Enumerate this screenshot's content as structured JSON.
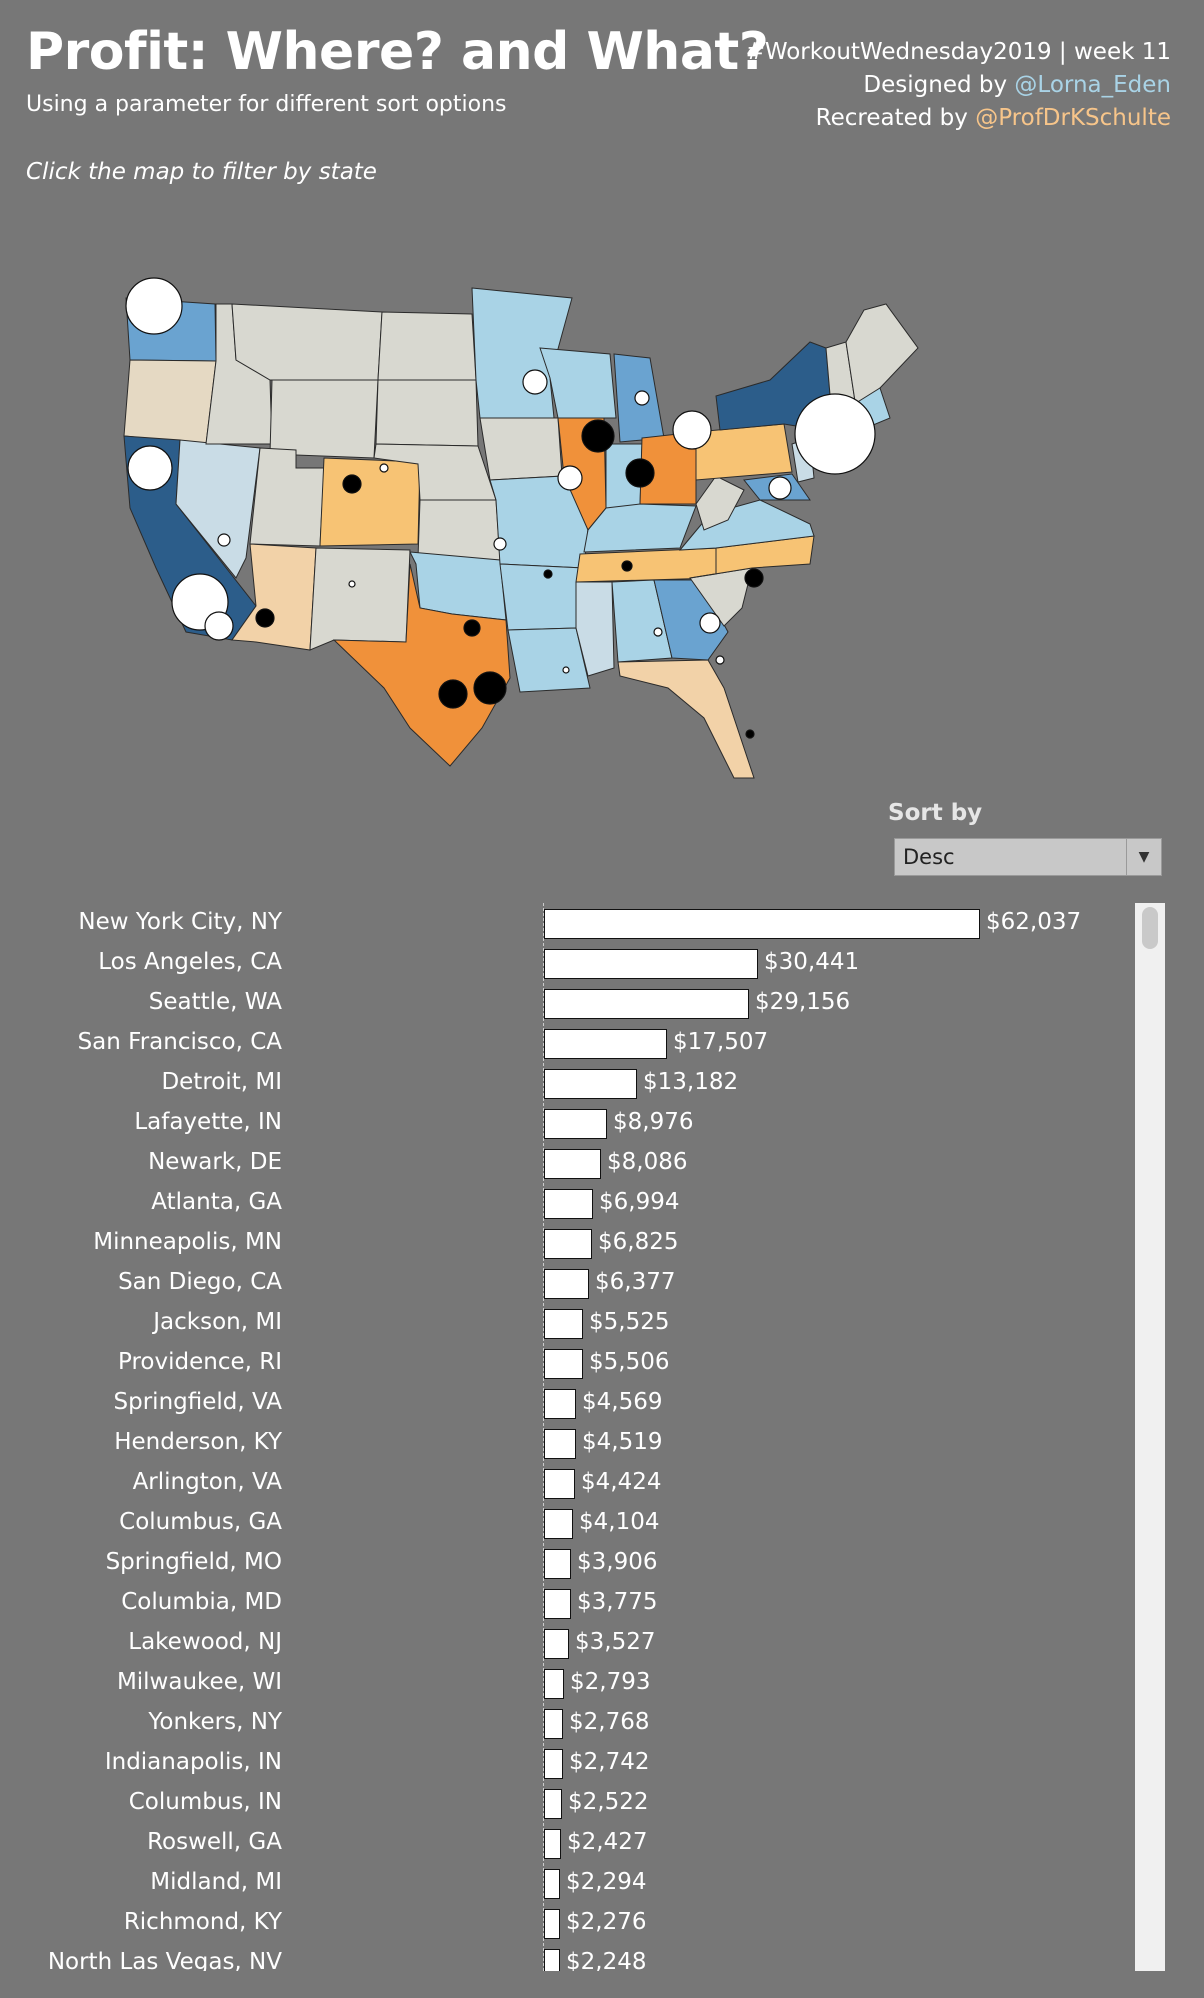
{
  "header": {
    "title": "Profit: Where? and What?",
    "subtitle": "Using a parameter for different sort options",
    "credit_line1": "#WorkoutWednesday2019 | week 11",
    "designed_prefix": "Designed by ",
    "designed_handle": "@Lorna_Eden",
    "recreated_prefix": "Recreated by ",
    "recreated_handle": "@ProfDrKSchulte",
    "instruction": "Click the map to filter by state"
  },
  "colors": {
    "background": "#777777",
    "diverging_high_positive": "#2c5d8a",
    "positive": "#6aa3d0",
    "light_positive": "#a9d3e6",
    "neutral": "#d8d8d0",
    "light_negative": "#f2d2a8",
    "negative": "#f7c374",
    "strong_negative": "#f0913a",
    "bar_fill": "#ffffff"
  },
  "sort": {
    "label": "Sort by",
    "value": "Desc"
  },
  "chart_data": [
    {
      "type": "bar",
      "orientation": "horizontal",
      "categories": [
        "New York City, NY",
        "Los Angeles, CA",
        "Seattle, WA",
        "San Francisco, CA",
        "Detroit, MI",
        "Lafayette, IN",
        "Newark, DE",
        "Atlanta, GA",
        "Minneapolis, MN",
        "San Diego, CA",
        "Jackson, MI",
        "Providence, RI",
        "Springfield, VA",
        "Henderson, KY",
        "Arlington, VA",
        "Columbus, GA",
        "Springfield, MO",
        "Columbia, MD",
        "Lakewood, NJ",
        "Milwaukee, WI",
        "Yonkers, NY",
        "Indianapolis, IN",
        "Columbus, IN",
        "Roswell, GA",
        "Midland, MI",
        "Richmond, KY",
        "North Las Vegas, NV"
      ],
      "values": [
        62037,
        30441,
        29156,
        17507,
        13182,
        8976,
        8086,
        6994,
        6825,
        6377,
        5525,
        5506,
        4569,
        4519,
        4424,
        4104,
        3906,
        3775,
        3527,
        2793,
        2768,
        2742,
        2522,
        2427,
        2294,
        2276,
        2248
      ],
      "labels": [
        "$62,037",
        "$30,441",
        "$29,156",
        "$17,507",
        "$13,182",
        "$8,976",
        "$8,086",
        "$6,994",
        "$6,825",
        "$6,377",
        "$5,525",
        "$5,506",
        "$4,569",
        "$4,519",
        "$4,424",
        "$4,104",
        "$3,906",
        "$3,775",
        "$3,527",
        "$2,793",
        "$2,768",
        "$2,742",
        "$2,522",
        "$2,427",
        "$2,294",
        "$2,276",
        "$2,248"
      ],
      "xlim": [
        0,
        62037
      ],
      "sort": "descending"
    },
    {
      "type": "map",
      "region": "United States",
      "encoding": "state fill = diverging profit (blue positive, orange negative); circles = cities, white = profit, black = loss"
    }
  ]
}
